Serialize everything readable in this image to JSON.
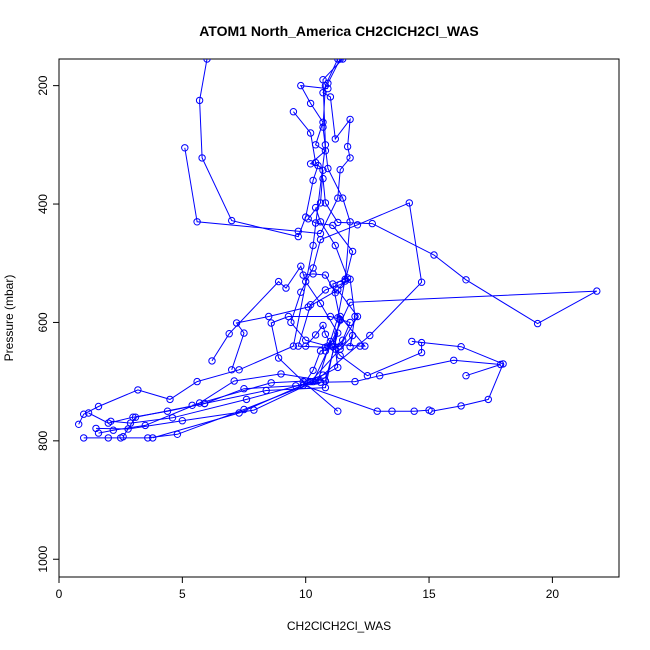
{
  "chart_data": {
    "type": "scatter",
    "title": "ATOM1 North_America CH2ClCH2Cl_WAS",
    "xlabel": "CH2ClCH2Cl_WAS",
    "ylabel": "Pressure (mbar)",
    "xlim": [
      0,
      22.7
    ],
    "ylim": [
      1030,
      155
    ],
    "y_reversed": true,
    "x_ticks": [
      0,
      5,
      10,
      15,
      20
    ],
    "y_ticks": [
      200,
      400,
      600,
      800,
      1000
    ],
    "grid": false,
    "color": "#0000ff",
    "series": [
      {
        "points": [
          [
            0.8,
            772
          ],
          [
            1.0,
            755
          ],
          [
            1.6,
            742
          ],
          [
            3.2,
            714
          ],
          [
            4.5,
            730
          ],
          [
            5.6,
            700
          ],
          [
            7.3,
            680
          ],
          [
            9.5,
            640
          ],
          [
            10.3,
            470
          ],
          [
            10.8,
            300
          ],
          [
            10.7,
            190
          ],
          [
            11.5,
            155
          ]
        ]
      },
      {
        "points": [
          [
            1.0,
            795
          ],
          [
            2.0,
            795
          ],
          [
            2.5,
            795
          ],
          [
            3.6,
            795
          ],
          [
            4.8,
            789
          ],
          [
            7.5,
            747
          ],
          [
            10.5,
            698
          ],
          [
            11.3,
            592
          ],
          [
            11.6,
            527
          ],
          [
            11.8,
            430
          ],
          [
            11.5,
            390
          ],
          [
            10.9,
            340
          ],
          [
            10.7,
            270
          ],
          [
            10.8,
            200
          ],
          [
            11.3,
            155
          ]
        ]
      },
      {
        "points": [
          [
            1.2,
            753
          ],
          [
            2.0,
            770
          ],
          [
            3.0,
            760
          ],
          [
            4.4,
            750
          ],
          [
            5.9,
            737
          ],
          [
            7.5,
            712
          ],
          [
            9.6,
            707
          ],
          [
            10.6,
            701
          ],
          [
            12.0,
            700
          ],
          [
            13.0,
            690
          ],
          [
            16.0,
            664
          ],
          [
            17.9,
            671
          ],
          [
            16.5,
            690
          ]
        ]
      },
      {
        "points": [
          [
            1.5,
            779
          ],
          [
            2.8,
            780
          ],
          [
            5.0,
            766
          ],
          [
            7.9,
            748
          ],
          [
            10.4,
            699
          ],
          [
            12.6,
            622
          ],
          [
            14.7,
            532
          ],
          [
            14.2,
            398
          ],
          [
            12.1,
            435
          ],
          [
            10.6,
            460
          ],
          [
            10.3,
            508
          ],
          [
            9.8,
            549
          ],
          [
            9.4,
            600
          ],
          [
            10.0,
            630
          ],
          [
            10.9,
            640
          ]
        ]
      },
      {
        "points": [
          [
            1.6,
            787
          ],
          [
            2.2,
            782
          ],
          [
            3.5,
            774
          ],
          [
            5.7,
            736
          ],
          [
            7.1,
            699
          ],
          [
            9.0,
            687
          ],
          [
            10.8,
            699
          ],
          [
            11.3,
            618
          ],
          [
            10.6,
            568
          ],
          [
            10.0,
            531
          ],
          [
            9.8,
            505
          ],
          [
            9.2,
            542
          ],
          [
            8.9,
            531
          ],
          [
            6.9,
            619
          ],
          [
            6.2,
            665
          ]
        ]
      },
      {
        "points": [
          [
            2.1,
            767
          ],
          [
            2.9,
            770
          ],
          [
            4.6,
            761
          ],
          [
            7.6,
            730
          ],
          [
            10.3,
            700
          ],
          [
            11.8,
            566
          ],
          [
            21.8,
            547
          ],
          [
            19.4,
            602
          ],
          [
            16.5,
            528
          ],
          [
            15.2,
            486
          ],
          [
            12.7,
            433
          ],
          [
            11.3,
            431
          ],
          [
            10.8,
            398
          ],
          [
            10.7,
            357
          ]
        ]
      },
      {
        "points": [
          [
            2.6,
            793
          ],
          [
            3.1,
            760
          ],
          [
            5.9,
            737
          ],
          [
            8.4,
            715
          ],
          [
            10.8,
            710
          ],
          [
            11.4,
            590
          ],
          [
            12.4,
            640
          ],
          [
            12.2,
            640
          ],
          [
            11.1,
            637
          ],
          [
            11.4,
            596
          ],
          [
            11.1,
            535
          ],
          [
            11.7,
            525
          ],
          [
            11.2,
            470
          ],
          [
            10.6,
            430
          ],
          [
            10.4,
            406
          ]
        ]
      },
      {
        "points": [
          [
            3.8,
            795
          ],
          [
            7.3,
            753
          ],
          [
            10.2,
            700
          ],
          [
            11.4,
            645
          ],
          [
            11.9,
            622
          ],
          [
            11.8,
            641
          ],
          [
            12.0,
            590
          ],
          [
            11.8,
            527
          ],
          [
            11.4,
            536
          ],
          [
            10.8,
            545
          ],
          [
            10.2,
            570
          ],
          [
            9.7,
            640
          ],
          [
            10.8,
            642
          ],
          [
            11.0,
            632
          ],
          [
            10.8,
            648
          ]
        ]
      },
      {
        "points": [
          [
            5.4,
            740
          ],
          [
            8.6,
            702
          ],
          [
            10.0,
            699
          ],
          [
            10.7,
            689
          ],
          [
            11.3,
            676
          ],
          [
            11.2,
            645
          ],
          [
            11.5,
            630
          ],
          [
            11.8,
            600
          ],
          [
            11.4,
            595
          ],
          [
            11.0,
            590
          ],
          [
            9.3,
            590
          ],
          [
            8.6,
            601
          ],
          [
            8.9,
            660
          ],
          [
            9.9,
            700
          ],
          [
            11.3,
            750
          ]
        ]
      },
      {
        "points": [
          [
            7.0,
            680
          ],
          [
            7.5,
            618
          ],
          [
            7.2,
            601
          ],
          [
            8.5,
            590
          ],
          [
            10.1,
            574
          ],
          [
            11.3,
            545
          ],
          [
            12.1,
            590
          ],
          [
            11.4,
            640
          ],
          [
            10.6,
            648
          ],
          [
            10.3,
            681
          ],
          [
            9.9,
            706
          ],
          [
            12.9,
            750
          ],
          [
            13.5,
            750
          ],
          [
            14.4,
            750
          ],
          [
            15.0,
            748
          ]
        ]
      },
      {
        "points": [
          [
            6.0,
            155
          ],
          [
            5.7,
            225
          ],
          [
            5.8,
            322
          ],
          [
            7.0,
            428
          ],
          [
            9.7,
            455
          ],
          [
            10.0,
            422
          ],
          [
            10.3,
            360
          ],
          [
            10.5,
            335
          ],
          [
            10.2,
            332
          ],
          [
            10.8,
            310
          ],
          [
            10.4,
            300
          ],
          [
            10.7,
            262
          ],
          [
            10.2,
            230
          ],
          [
            9.8,
            200
          ],
          [
            10.9,
            205
          ]
        ]
      },
      {
        "points": [
          [
            5.1,
            305
          ],
          [
            5.6,
            430
          ],
          [
            9.7,
            446
          ],
          [
            10.6,
            450
          ],
          [
            11.3,
            390
          ],
          [
            11.4,
            342
          ],
          [
            11.8,
            322
          ],
          [
            11.7,
            303
          ],
          [
            11.8,
            257
          ],
          [
            11.2,
            290
          ],
          [
            11.0,
            219
          ],
          [
            10.7,
            212
          ],
          [
            10.9,
            196
          ],
          [
            11.4,
            155
          ]
        ]
      },
      {
        "points": [
          [
            9.5,
            244
          ],
          [
            10.2,
            280
          ],
          [
            10.4,
            330
          ],
          [
            10.7,
            343
          ],
          [
            10.6,
            398
          ],
          [
            10.1,
            425
          ],
          [
            10.4,
            432
          ],
          [
            11.1,
            436
          ],
          [
            11.9,
            480
          ],
          [
            11.6,
            530
          ],
          [
            11.2,
            550
          ],
          [
            10.8,
            520
          ],
          [
            10.3,
            518
          ],
          [
            9.9,
            520
          ]
        ]
      },
      {
        "points": [
          [
            10.0,
            640
          ],
          [
            10.4,
            621
          ],
          [
            10.7,
            605
          ],
          [
            10.8,
            620
          ],
          [
            11.1,
            641
          ],
          [
            11.4,
            656
          ],
          [
            12.5,
            690
          ],
          [
            14.7,
            651
          ],
          [
            14.7,
            634
          ],
          [
            14.3,
            632
          ],
          [
            16.3,
            641
          ],
          [
            18.0,
            670
          ],
          [
            17.4,
            730
          ],
          [
            16.3,
            741
          ],
          [
            15.1,
            750
          ]
        ]
      }
    ]
  }
}
